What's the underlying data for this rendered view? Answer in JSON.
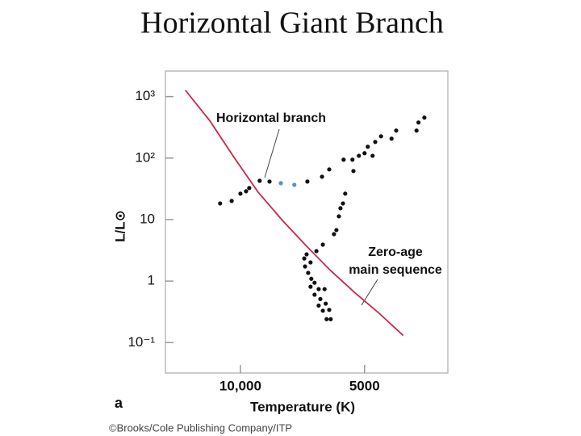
{
  "chart_data": {
    "type": "scatter",
    "title": "Horizontal Giant Branch",
    "xlabel": "Temperature (K)",
    "ylabel": "L/L⊙",
    "panel_label": "a",
    "credit": "©Brooks/Cole Publishing Company/ITP",
    "log_x": true,
    "log_y": true,
    "xlim": [
      15200,
      3140
    ],
    "ylim": [
      0.032,
      2600
    ],
    "xticks": [
      {
        "value": 10000,
        "label": "10,000"
      },
      5000
    ],
    "yticks": [
      {
        "value": 1000,
        "label": "10³"
      },
      {
        "value": 100,
        "label": "10²"
      },
      10,
      1,
      {
        "value": 0.1,
        "label": "10⁻¹"
      }
    ],
    "x": [
      11200,
      10500,
      10000,
      9690,
      9520,
      8980,
      8500,
      7980,
      7400,
      6880,
      6340,
      6090,
      5620,
      5350,
      5320,
      5160,
      5000,
      4910,
      4780,
      4710,
      4560,
      4300,
      4190,
      3740,
      3700,
      3580,
      5570,
      5640,
      5720,
      5770,
      5850,
      5930,
      6310,
      6540,
      6910,
      7000,
      6760,
      6970,
      6850,
      6730,
      6610,
      6760,
      6460,
      6250,
      6610,
      6400,
      6460,
      6210,
      6310,
      6090,
      6040,
      6180
    ],
    "values": [
      18.3,
      20.1,
      26.4,
      28.9,
      32.6,
      42.8,
      41.5,
      39.1,
      36.8,
      41.5,
      49.8,
      65.4,
      94.2,
      94.2,
      61.6,
      109,
      120,
      153,
      109,
      183,
      226,
      207,
      280,
      280,
      379,
      455,
      26.4,
      18.3,
      15.3,
      11.3,
      6.75,
      5.8,
      3.91,
      3.07,
      2.72,
      2.33,
      2.01,
      1.73,
      1.36,
      1.09,
      0.94,
      0.81,
      0.74,
      0.74,
      0.6,
      0.51,
      0.4,
      0.43,
      0.33,
      0.34,
      0.24,
      0.24
    ],
    "color": "#111111",
    "highlight_color": "#5b8fc7",
    "highlight_points": [
      7,
      8
    ],
    "lines": [
      {
        "x": [
          13600,
          11860,
          10370,
          9060,
          7910,
          6910,
          6040,
          5280,
          4610,
          4030
        ],
        "values": [
          1270,
          403,
          103,
          28.0,
          9.7,
          3.68,
          1.48,
          0.65,
          0.3,
          0.131
        ],
        "color": "#c8284a"
      }
    ],
    "annotations": [
      {
        "text": [
          "Horizontal branch"
        ]
      },
      {
        "text": [
          "Zero-age",
          "main sequence"
        ]
      }
    ]
  }
}
